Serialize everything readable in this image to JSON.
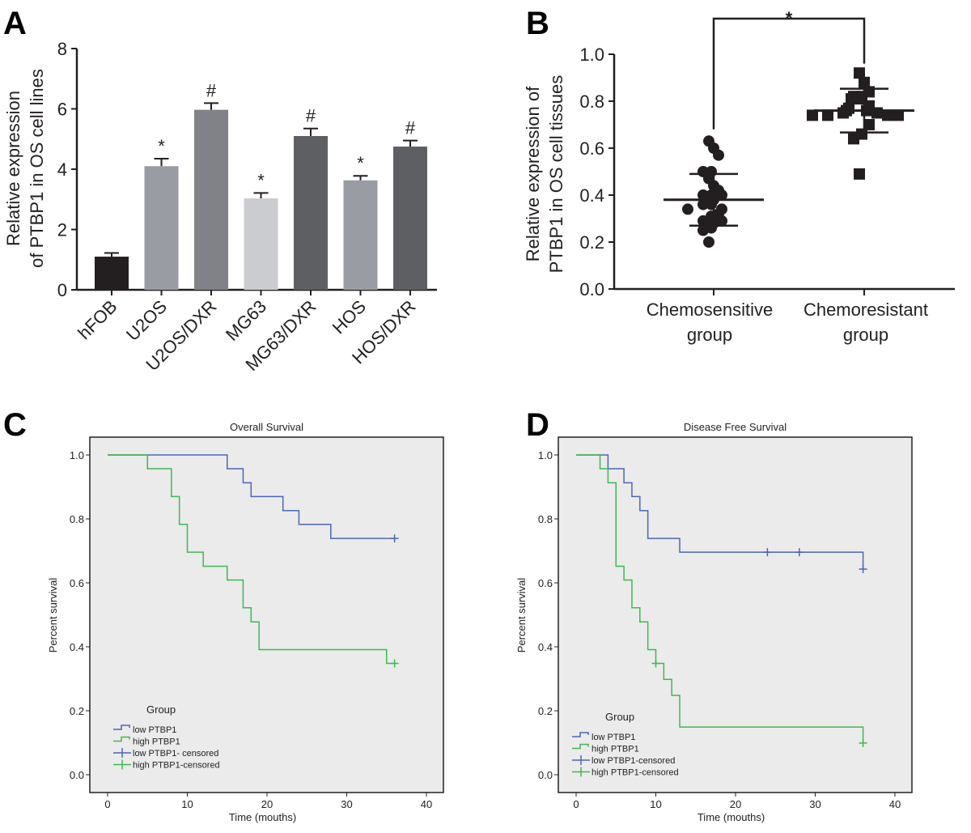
{
  "chart_data": [
    {
      "panel": "A",
      "type": "bar",
      "ylabel": [
        "Relative expression",
        "of PTBP1 in OS cell lines"
      ],
      "categories": [
        "hFOB",
        "U2OS",
        "U2OS/DXR",
        "MG63",
        "MG63/DXR",
        "HOS",
        "HOS/DXR"
      ],
      "values": [
        1.1,
        4.1,
        5.97,
        3.03,
        5.1,
        3.63,
        4.75
      ],
      "errors": [
        0.12,
        0.25,
        0.22,
        0.18,
        0.25,
        0.15,
        0.2
      ],
      "annotations": [
        "",
        "*",
        "#",
        "*",
        "#",
        "*",
        "#"
      ],
      "colors": [
        "#231f20",
        "#9a9ca3",
        "#808287",
        "#cbcccf",
        "#5e5f63",
        "#9a9ca3",
        "#5e5f63"
      ],
      "ylim": [
        0,
        8
      ],
      "yticks": [
        "0",
        "2",
        "4",
        "6",
        "8"
      ]
    },
    {
      "panel": "B",
      "type": "scatter",
      "ylabel": [
        "Relative expression of",
        "PTBP1 in OS cell tissues"
      ],
      "categories": [
        [
          "Chemosensitive",
          "group"
        ],
        [
          "Chemoresistant",
          "group"
        ]
      ],
      "series": [
        {
          "marker": "circle",
          "values": [
            0.63,
            0.6,
            0.57,
            0.5,
            0.5,
            0.47,
            0.44,
            0.42,
            0.4,
            0.4,
            0.4,
            0.38,
            0.38,
            0.36,
            0.36,
            0.34,
            0.34,
            0.32,
            0.31,
            0.29,
            0.29,
            0.28,
            0.27,
            0.26,
            0.25,
            0.2
          ],
          "mean": 0.38,
          "sd": 0.11
        },
        {
          "marker": "square",
          "values": [
            0.92,
            0.88,
            0.84,
            0.82,
            0.82,
            0.81,
            0.81,
            0.78,
            0.77,
            0.76,
            0.76,
            0.75,
            0.75,
            0.74,
            0.74,
            0.74,
            0.74,
            0.7,
            0.66,
            0.64,
            0.49
          ],
          "mean": 0.76,
          "sd": 0.093
        }
      ],
      "significance": "*",
      "ylim": [
        0,
        1.0
      ],
      "yticks": [
        "0.0",
        "0.2",
        "0.4",
        "0.6",
        "0.8",
        "1.0"
      ]
    },
    {
      "panel": "C",
      "type": "line",
      "title": "Overall Survival",
      "xlabel": "Time (mouths)",
      "ylabel": "Percent survival",
      "xlim": [
        0,
        40
      ],
      "ylim": [
        0,
        1
      ],
      "xticks": [
        "0",
        "10",
        "20",
        "30",
        "40"
      ],
      "yticks": [
        "0.0",
        "0.2",
        "0.4",
        "0.6",
        "0.8",
        "1.0"
      ],
      "legend_title": "Group",
      "legend": [
        "low PTBP1",
        "high PTBP1",
        "low PTBP1- censored",
        "high PTBP1-censored"
      ],
      "series": [
        {
          "name": "low PTBP1",
          "color": "#4a66b8",
          "steps": [
            [
              0,
              1
            ],
            [
              15,
              0.957
            ],
            [
              17,
              0.913
            ],
            [
              18,
              0.87
            ],
            [
              22,
              0.826
            ],
            [
              24,
              0.783
            ],
            [
              28,
              0.739
            ]
          ],
          "end": 36,
          "censored": [
            [
              36,
              0.739
            ]
          ]
        },
        {
          "name": "high PTBP1",
          "color": "#3dba4e",
          "steps": [
            [
              0,
              1
            ],
            [
              5,
              0.957
            ],
            [
              8,
              0.87
            ],
            [
              9,
              0.783
            ],
            [
              10,
              0.696
            ],
            [
              12,
              0.652
            ],
            [
              15,
              0.609
            ],
            [
              17,
              0.522
            ],
            [
              18,
              0.478
            ],
            [
              19,
              0.391
            ],
            [
              35,
              0.348
            ]
          ],
          "end": 36,
          "censored": [
            [
              36,
              0.348
            ]
          ]
        }
      ]
    },
    {
      "panel": "D",
      "type": "line",
      "title": "Disease Free Survival",
      "xlabel": "Time (mouths)",
      "ylabel": "Percent survival",
      "xlim": [
        0,
        40
      ],
      "ylim": [
        0,
        1
      ],
      "xticks": [
        "0",
        "10",
        "20",
        "30",
        "40"
      ],
      "yticks": [
        "0.0",
        "0.2",
        "0.4",
        "0.6",
        "0.8",
        "1.0"
      ],
      "legend_title": "Group",
      "legend": [
        "low PTBP1",
        "high PTBP1",
        "low PTBP1-censored",
        "high PTBP1-censored"
      ],
      "series": [
        {
          "name": "low PTBP1",
          "color": "#4a66b8",
          "steps": [
            [
              0,
              1
            ],
            [
              4,
              0.957
            ],
            [
              6,
              0.913
            ],
            [
              7,
              0.87
            ],
            [
              8,
              0.826
            ],
            [
              9,
              0.739
            ],
            [
              13,
              0.696
            ],
            [
              36,
              0.643
            ]
          ],
          "end": 36,
          "censored": [
            [
              24,
              0.696
            ],
            [
              28,
              0.696
            ],
            [
              36,
              0.643
            ]
          ]
        },
        {
          "name": "high PTBP1",
          "color": "#3dba4e",
          "steps": [
            [
              0,
              1
            ],
            [
              3,
              0.957
            ],
            [
              4,
              0.913
            ],
            [
              5,
              0.652
            ],
            [
              6,
              0.609
            ],
            [
              7,
              0.522
            ],
            [
              8,
              0.478
            ],
            [
              9,
              0.391
            ],
            [
              10,
              0.348
            ],
            [
              11,
              0.298
            ],
            [
              12,
              0.248
            ],
            [
              13,
              0.149
            ],
            [
              36,
              0.099
            ]
          ],
          "end": 36,
          "censored": [
            [
              10,
              0.348
            ],
            [
              36,
              0.099
            ]
          ]
        }
      ]
    }
  ],
  "panel_labels": [
    "A",
    "B",
    "C",
    "D"
  ]
}
